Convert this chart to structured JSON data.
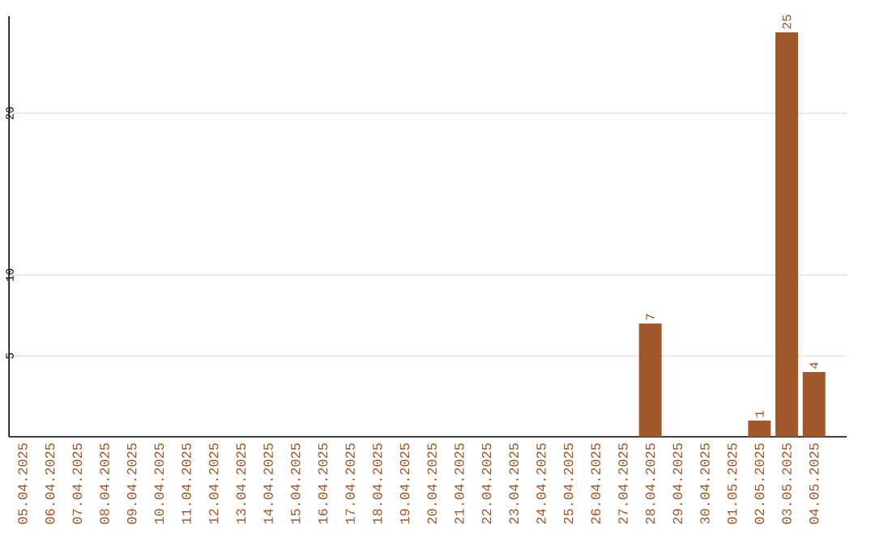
{
  "chart_data": {
    "type": "bar",
    "categories": [
      "05.04.2025",
      "06.04.2025",
      "07.04.2025",
      "08.04.2025",
      "09.04.2025",
      "10.04.2025",
      "11.04.2025",
      "12.04.2025",
      "13.04.2025",
      "14.04.2025",
      "15.04.2025",
      "16.04.2025",
      "17.04.2025",
      "18.04.2025",
      "19.04.2025",
      "20.04.2025",
      "21.04.2025",
      "22.04.2025",
      "23.04.2025",
      "24.04.2025",
      "25.04.2025",
      "26.04.2025",
      "27.04.2025",
      "28.04.2025",
      "29.04.2025",
      "30.04.2025",
      "01.05.2025",
      "02.05.2025",
      "03.05.2025",
      "04.05.2025"
    ],
    "values": [
      0,
      0,
      0,
      0,
      0,
      0,
      0,
      0,
      0,
      0,
      0,
      0,
      0,
      0,
      0,
      0,
      0,
      0,
      0,
      0,
      0,
      0,
      0,
      7,
      0,
      0,
      0,
      1,
      25,
      4
    ],
    "value_labels": [
      null,
      null,
      null,
      null,
      null,
      null,
      null,
      null,
      null,
      null,
      null,
      null,
      null,
      null,
      null,
      null,
      null,
      null,
      null,
      null,
      null,
      null,
      null,
      "7",
      null,
      null,
      null,
      "1",
      "25",
      "4"
    ],
    "color": "#a0572a",
    "ylim": [
      0,
      26
    ],
    "yticks": [
      5,
      10,
      20
    ],
    "grid": "y"
  }
}
